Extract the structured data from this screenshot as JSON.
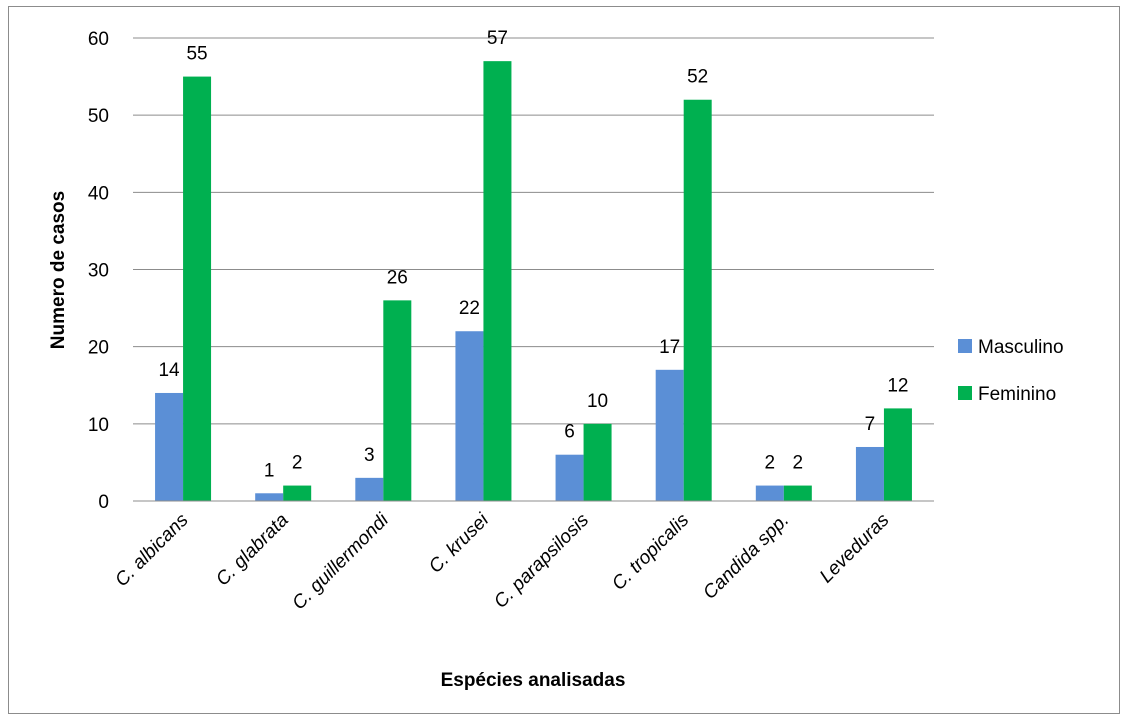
{
  "chart_data": {
    "type": "bar",
    "title": "",
    "xlabel": "Espécies analisadas",
    "ylabel": "Numero de casos",
    "ylim": [
      0,
      60
    ],
    "yticks": [
      0,
      10,
      20,
      30,
      40,
      50,
      60
    ],
    "grid": true,
    "legend_position": "right",
    "categories": [
      "C. albicans",
      "C. glabrata",
      "C. guillermondi",
      "C. krusei",
      "C. parapsilosis",
      "C. tropicalis",
      "Candida spp.",
      "Leveduras"
    ],
    "series": [
      {
        "name": "Masculino",
        "color": "#5b8fd6",
        "values": [
          14,
          1,
          3,
          22,
          6,
          17,
          2,
          7
        ]
      },
      {
        "name": "Feminino",
        "color": "#00b050",
        "values": [
          55,
          2,
          26,
          57,
          10,
          52,
          2,
          12
        ]
      }
    ]
  }
}
